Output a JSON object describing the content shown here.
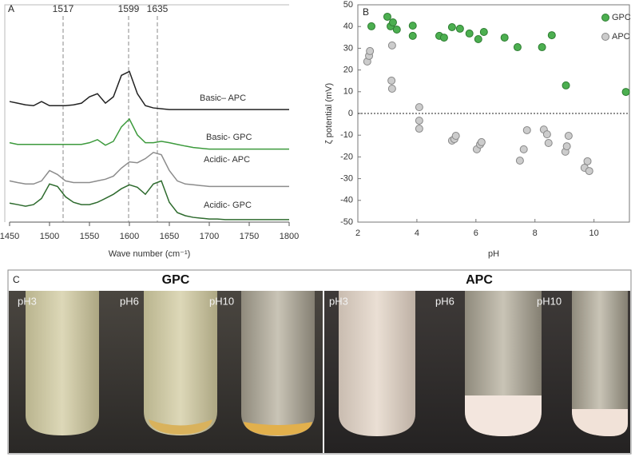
{
  "chart_data": [
    {
      "type": "line",
      "panel_label": "A",
      "xlabel": "Wave number (cm⁻¹)",
      "x": [
        1450,
        1460,
        1470,
        1480,
        1490,
        1500,
        1510,
        1520,
        1530,
        1540,
        1550,
        1560,
        1570,
        1580,
        1590,
        1600,
        1610,
        1620,
        1630,
        1640,
        1650,
        1660,
        1670,
        1680,
        1690,
        1700,
        1710,
        1720,
        1730,
        1740,
        1750,
        1760,
        1770,
        1780,
        1790,
        1800
      ],
      "xlim": [
        1450,
        1800
      ],
      "xticks": [
        1450,
        1500,
        1550,
        1600,
        1650,
        1700,
        1750,
        1800
      ],
      "ylim": [
        0,
        100
      ],
      "annotations": [
        1517,
        1599,
        1635
      ],
      "series": [
        {
          "name": "Basic– APC",
          "color": "#222222",
          "values": [
            58.5,
            57.7,
            56.9,
            56.5,
            58.5,
            56.5,
            56.5,
            56.5,
            56.9,
            57.7,
            60.8,
            62.3,
            57.7,
            60.8,
            71.2,
            73.1,
            62.3,
            56.5,
            55.4,
            55,
            54.6,
            54.6,
            54.6,
            54.6,
            54.6,
            54.6,
            54.6,
            54.6,
            54.6,
            54.6,
            54.6,
            54.6,
            54.6,
            54.6,
            54.6,
            54.6
          ]
        },
        {
          "name": "Basic- GPC",
          "color": "#3c9a3c",
          "values": [
            38.5,
            37.7,
            37.7,
            37.7,
            37.7,
            37.7,
            37.7,
            37.7,
            37.7,
            37.7,
            38.5,
            40,
            37.3,
            39.2,
            46.2,
            50,
            42.3,
            38.5,
            38.5,
            39.2,
            38.5,
            37.7,
            36.9,
            36.2,
            35.8,
            35.4,
            35.4,
            35.4,
            35.4,
            35.4,
            35.4,
            35.4,
            35.4,
            35.4,
            35.4,
            35.4
          ]
        },
        {
          "name": "Acidic- APC",
          "color": "#8c8c8c",
          "values": [
            20,
            19.2,
            18.5,
            18.5,
            20,
            25,
            23.1,
            20,
            19.2,
            19.2,
            19.2,
            20,
            20.8,
            22.3,
            26.2,
            29.2,
            28.8,
            30.8,
            33.8,
            32.7,
            25,
            20,
            18.5,
            18.1,
            17.7,
            17.3,
            17.3,
            17.3,
            17.3,
            17.3,
            17.3,
            17.3,
            17.3,
            17.3,
            17.3,
            17.3
          ]
        },
        {
          "name": "Acidic- GPC",
          "color": "#2e6b2e",
          "values": [
            9.2,
            8.5,
            7.7,
            8.5,
            11.5,
            18.5,
            17.3,
            12.3,
            9.6,
            8.5,
            8.5,
            9.6,
            11.5,
            13.5,
            16.2,
            18.1,
            16.9,
            13.5,
            18.5,
            20,
            9.6,
            4.6,
            3.1,
            2.3,
            1.9,
            1.5,
            1.5,
            1.2,
            1.2,
            1.2,
            1.2,
            1.2,
            1.2,
            1.2,
            1.2,
            1.2
          ]
        }
      ]
    },
    {
      "type": "scatter",
      "panel_label": "B",
      "xlabel": "pH",
      "ylabel": "ζ potential (mV)",
      "xlim": [
        2,
        11.2
      ],
      "xticks": [
        2,
        4,
        6,
        8,
        10
      ],
      "ylim": [
        -50,
        50
      ],
      "yticks": [
        -50,
        -40,
        -30,
        -20,
        -10,
        0,
        10,
        20,
        30,
        40,
        50
      ],
      "zero_line": true,
      "legend": "top-right",
      "series": [
        {
          "name": "GPC",
          "color": "#4caf50",
          "x": [
            2.46,
            3.0,
            3.11,
            3.19,
            3.32,
            3.86,
            3.86,
            4.76,
            4.92,
            5.19,
            5.46,
            5.78,
            6.08,
            6.27,
            6.97,
            7.41,
            8.24,
            8.57,
            9.05,
            11.08
          ],
          "values": [
            40.1,
            44.5,
            40.1,
            41.9,
            38.6,
            40.4,
            35.7,
            35.7,
            34.9,
            39.7,
            39,
            36.8,
            34.2,
            37.5,
            34.9,
            30.5,
            30.5,
            36,
            12.9,
            9.9
          ]
        },
        {
          "name": "APC",
          "color": "#cccccc",
          "x": [
            2.32,
            2.38,
            2.41,
            3.16,
            3.14,
            3.16,
            4.08,
            4.08,
            4.08,
            5.19,
            5.27,
            5.32,
            6.03,
            6.14,
            6.19,
            7.49,
            7.62,
            7.73,
            8.3,
            8.41,
            8.46,
            9.03,
            9.08,
            9.14,
            9.68,
            9.78,
            9.84
          ],
          "values": [
            23.9,
            26.5,
            28.7,
            31.3,
            15.1,
            11.4,
            2.9,
            -3.3,
            -7,
            -12.5,
            -11.8,
            -10.3,
            -16.5,
            -14.3,
            -13.2,
            -21.7,
            -16.5,
            -7.7,
            -7.4,
            -9.6,
            -13.6,
            -17.6,
            -15.1,
            -10.3,
            -25,
            -22,
            -26.5
          ]
        }
      ]
    }
  ],
  "panel_c": {
    "label": "C",
    "groups": [
      {
        "title": "GPC",
        "samples": [
          "pH3",
          "pH6",
          "pH10"
        ]
      },
      {
        "title": "APC",
        "samples": [
          "pH3",
          "pH6",
          "pH10"
        ]
      }
    ]
  }
}
